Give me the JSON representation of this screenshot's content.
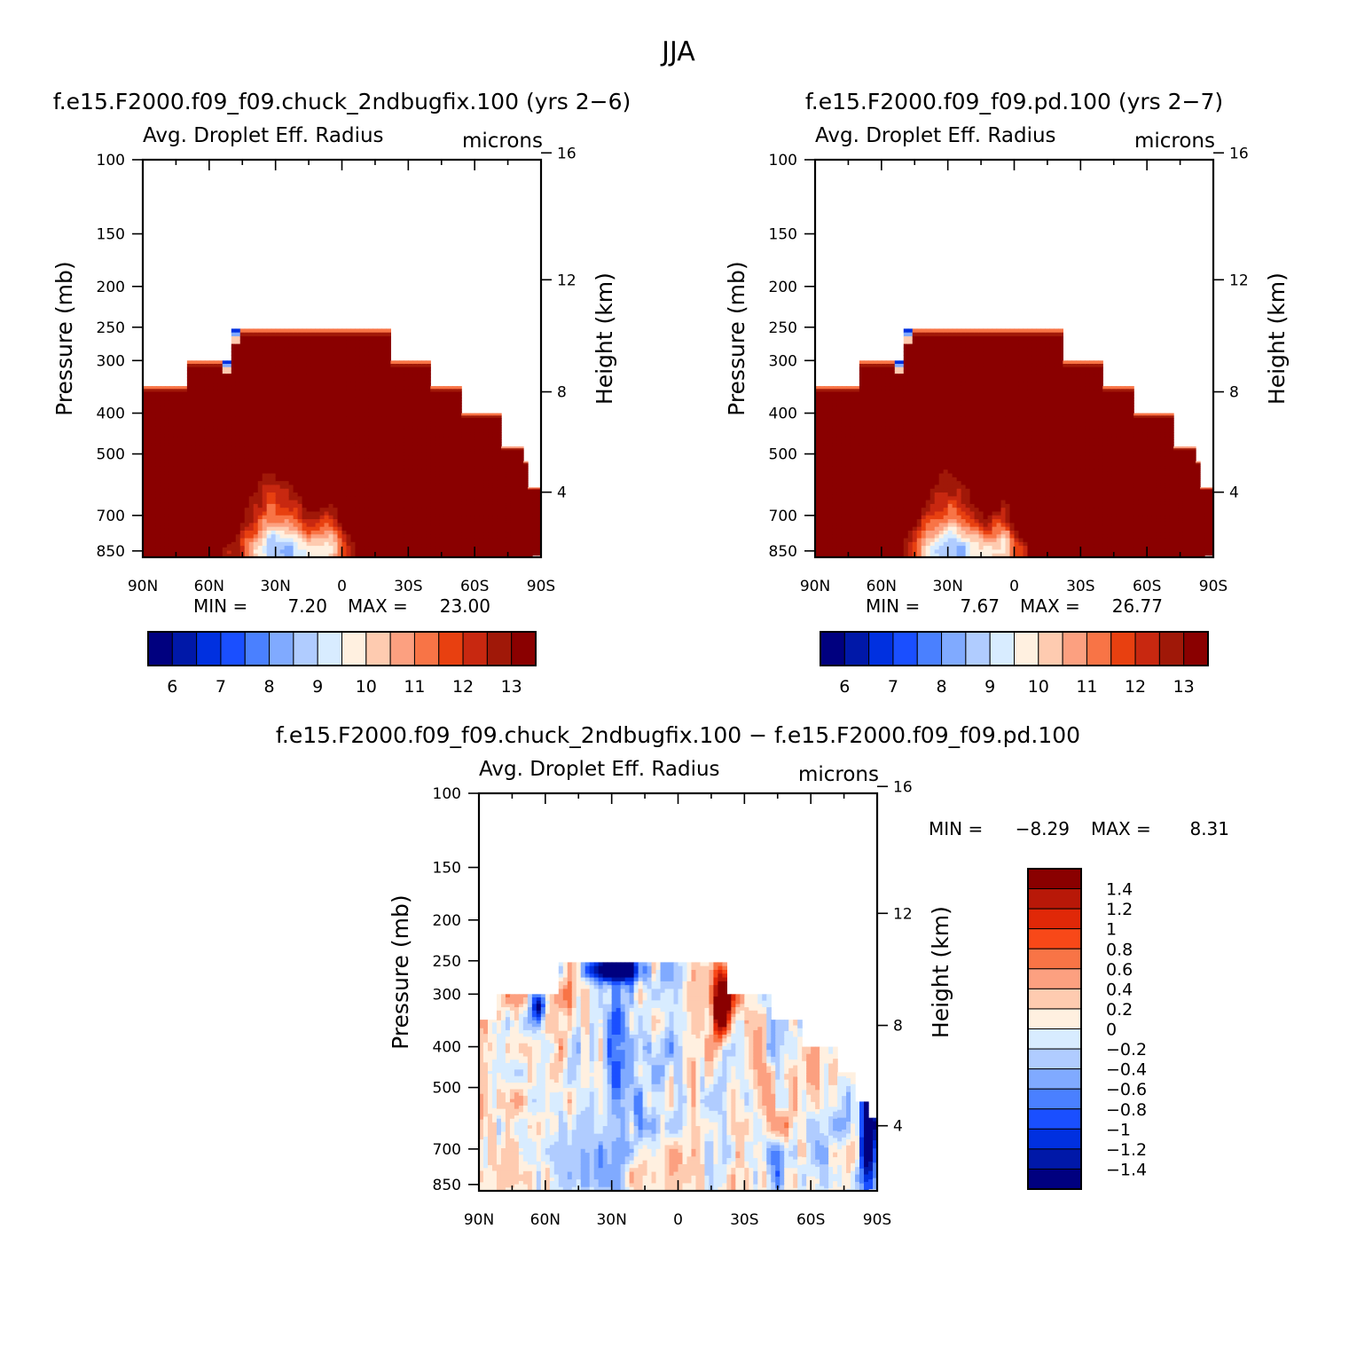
{
  "figure": {
    "season": "JJA"
  },
  "palettes": {
    "absolute": [
      "#00007f",
      "#0018a8",
      "#0030e0",
      "#1a4fff",
      "#4a80ff",
      "#80aaff",
      "#b0ccff",
      "#d8ecff",
      "#fff0e0",
      "#fecbb0",
      "#fca080",
      "#f87446",
      "#e84010",
      "#c82810",
      "#a01808",
      "#8a0000"
    ],
    "difference": [
      "#00007f",
      "#0018a8",
      "#0030e0",
      "#1a4fff",
      "#4a80ff",
      "#80aaff",
      "#b0ccff",
      "#d8ecff",
      "#fff0e0",
      "#fecbb0",
      "#fca080",
      "#f87446",
      "#f84818",
      "#e02808",
      "#b81808",
      "#8a0000"
    ]
  },
  "chart_data": [
    {
      "type": "heatmap",
      "id": "case1",
      "title": "f.e15.F2000.f09_f09.chuck_2ndbugfix.100 (yrs 2−6)",
      "variable": "Avg. Droplet Eff. Radius",
      "units": "microns",
      "ylabel": "Pressure (mb)",
      "ylabel_right": "Height (km)",
      "pressure_ticks": [
        "100",
        "150",
        "200",
        "250",
        "300",
        "400",
        "500",
        "700",
        "850"
      ],
      "pressure_values": [
        100,
        150,
        200,
        250,
        300,
        400,
        500,
        700,
        850
      ],
      "height_ticks": [
        "16",
        "12",
        "8",
        "4"
      ],
      "height_values": [
        16,
        12,
        8,
        4
      ],
      "lat_ticks": [
        "90N",
        "60N",
        "30N",
        "0",
        "30S",
        "60S",
        "90S"
      ],
      "lat_values": [
        90,
        60,
        30,
        0,
        -30,
        -60,
        -90
      ],
      "min_label": "MIN =",
      "min_value": "7.20",
      "max_label": "MAX =",
      "max_value": "23.00",
      "colorbar_labels": [
        "6",
        "7",
        "8",
        "9",
        "10",
        "11",
        "12",
        "13"
      ],
      "colorbar_levels": [
        5.5,
        6,
        6.5,
        7,
        7.5,
        8,
        8.5,
        9,
        9.5,
        10,
        10.5,
        11,
        11.5,
        12,
        12.5,
        13,
        13.5
      ]
    },
    {
      "type": "heatmap",
      "id": "case2",
      "title": "f.e15.F2000.f09_f09.pd.100 (yrs 2−7)",
      "variable": "Avg. Droplet Eff. Radius",
      "units": "microns",
      "ylabel": "Pressure (mb)",
      "ylabel_right": "Height (km)",
      "pressure_ticks": [
        "100",
        "150",
        "200",
        "250",
        "300",
        "400",
        "500",
        "700",
        "850"
      ],
      "pressure_values": [
        100,
        150,
        200,
        250,
        300,
        400,
        500,
        700,
        850
      ],
      "height_ticks": [
        "16",
        "12",
        "8",
        "4"
      ],
      "height_values": [
        16,
        12,
        8,
        4
      ],
      "lat_ticks": [
        "90N",
        "60N",
        "30N",
        "0",
        "30S",
        "60S",
        "90S"
      ],
      "lat_values": [
        90,
        60,
        30,
        0,
        -30,
        -60,
        -90
      ],
      "min_label": "MIN =",
      "min_value": "7.67",
      "max_label": "MAX =",
      "max_value": "26.77",
      "colorbar_labels": [
        "6",
        "7",
        "8",
        "9",
        "10",
        "11",
        "12",
        "13"
      ],
      "colorbar_levels": [
        5.5,
        6,
        6.5,
        7,
        7.5,
        8,
        8.5,
        9,
        9.5,
        10,
        10.5,
        11,
        11.5,
        12,
        12.5,
        13,
        13.5
      ]
    },
    {
      "type": "heatmap",
      "id": "diff",
      "title": "f.e15.F2000.f09_f09.chuck_2ndbugfix.100 − f.e15.F2000.f09_f09.pd.100",
      "variable": "Avg. Droplet Eff. Radius",
      "units": "microns",
      "ylabel": "Pressure (mb)",
      "ylabel_right": "Height (km)",
      "pressure_ticks": [
        "100",
        "150",
        "200",
        "250",
        "300",
        "400",
        "500",
        "700",
        "850"
      ],
      "pressure_values": [
        100,
        150,
        200,
        250,
        300,
        400,
        500,
        700,
        850
      ],
      "height_ticks": [
        "16",
        "12",
        "8",
        "4"
      ],
      "height_values": [
        16,
        12,
        8,
        4
      ],
      "lat_ticks": [
        "90N",
        "60N",
        "30N",
        "0",
        "30S",
        "60S",
        "90S"
      ],
      "lat_values": [
        90,
        60,
        30,
        0,
        -30,
        -60,
        -90
      ],
      "min_label": "MIN =",
      "min_value": "−8.29",
      "max_label": "MAX =",
      "max_value": "8.31",
      "colorbar_labels": [
        "1.4",
        "1.2",
        "1",
        "0.8",
        "0.6",
        "0.4",
        "0.2",
        "0",
        "−0.2",
        "−0.4",
        "−0.6",
        "−0.8",
        "−1",
        "−1.2",
        "−1.4"
      ],
      "colorbar_levels": [
        -1.4,
        -1.2,
        -1,
        -0.8,
        -0.6,
        -0.4,
        -0.2,
        0,
        0.2,
        0.4,
        0.6,
        0.8,
        1,
        1.2,
        1.4
      ]
    }
  ]
}
